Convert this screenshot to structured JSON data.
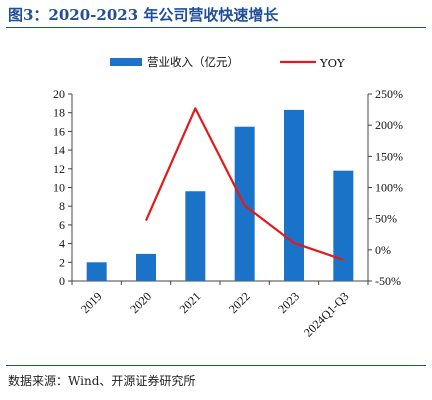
{
  "title": "图3：2020-2023 年公司营收快速增长",
  "source": "数据来源：Wind、开源证券研究所",
  "colors": {
    "bar": "#1a73c8",
    "line": "#e31a1c",
    "title": "#1f4e9a"
  },
  "chart_data": {
    "type": "bar",
    "title": "图3：2020-2023 年公司营收快速增长",
    "categories": [
      "2019",
      "2020",
      "2021",
      "2022",
      "2023",
      "2024Q1-Q3"
    ],
    "series": [
      {
        "name": "营业收入（亿元）",
        "type": "bar",
        "axis": "left",
        "values": [
          2.0,
          2.9,
          9.6,
          16.5,
          18.3,
          11.8
        ]
      },
      {
        "name": "YOY",
        "type": "line",
        "axis": "right",
        "values": [
          null,
          47,
          227,
          71,
          11,
          -16
        ]
      }
    ],
    "ylim_left": [
      0,
      20
    ],
    "yticks_left": [
      "0",
      "2",
      "4",
      "6",
      "8",
      "10",
      "12",
      "14",
      "16",
      "18",
      "20"
    ],
    "ylim_right": [
      -50,
      250
    ],
    "yticks_right": [
      "-50%",
      "0%",
      "50%",
      "100%",
      "150%",
      "200%",
      "250%"
    ],
    "legend": {
      "position": "top-center"
    },
    "grid": false
  }
}
